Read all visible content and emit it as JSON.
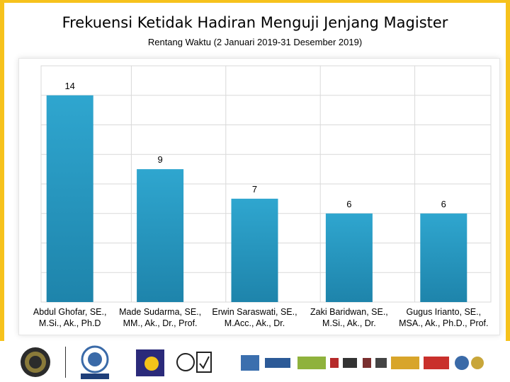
{
  "colors": {
    "background": "#f6c21c",
    "bar": "#2fa6cf",
    "bar_dark": "#1e84ab",
    "grid": "#d9d9d9"
  },
  "chart_data": {
    "type": "bar",
    "title": "Frekuensi Ketidak Hadiran Menguji Jenjang Magister",
    "subtitle": "Rentang Waktu (2 Januari 2019-31 Desember 2019)",
    "categories": [
      [
        "Abdul Ghofar, SE.,",
        "M.Si., Ak., Ph.D"
      ],
      [
        "Made Sudarma, SE.,",
        "MM., Ak., Dr., Prof."
      ],
      [
        "Erwin Saraswati, SE.,",
        "M.Acc., Ak., Dr."
      ],
      [
        "Zaki Baridwan, SE.,",
        "M.Si., Ak., Dr."
      ],
      [
        "Gugus Irianto, SE.,",
        "MSA., Ak., Ph.D., Prof."
      ]
    ],
    "values": [
      14,
      9,
      7,
      6,
      6
    ],
    "ylim": [
      0,
      16
    ],
    "grid": true,
    "legend": "none"
  },
  "footer": {
    "logos": [
      "university-seal-icon",
      "abest21-logo-icon",
      "ub-logo-icon",
      "certification-logo-icon",
      "member-partner-logos-icon"
    ]
  }
}
